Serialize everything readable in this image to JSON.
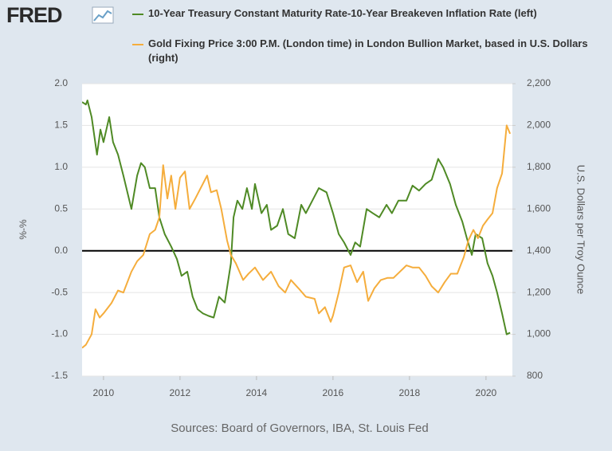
{
  "logo": "FRED",
  "chart_data": {
    "type": "line",
    "series": [
      {
        "name": "10-Year Treasury Constant Maturity Rate-10-Year Breakeven Inflation Rate (left)",
        "color": "#4f8a25",
        "axis": "y",
        "x": [
          2009.44,
          2009.54,
          2009.58,
          2009.69,
          2009.83,
          2009.92,
          2010.0,
          2010.15,
          2010.25,
          2010.38,
          2010.52,
          2010.73,
          2010.88,
          2010.98,
          2011.08,
          2011.21,
          2011.35,
          2011.46,
          2011.6,
          2011.77,
          2011.92,
          2012.04,
          2012.19,
          2012.33,
          2012.46,
          2012.6,
          2012.75,
          2012.88,
          2013.02,
          2013.17,
          2013.33,
          2013.4,
          2013.5,
          2013.63,
          2013.75,
          2013.88,
          2013.96,
          2014.13,
          2014.27,
          2014.38,
          2014.54,
          2014.69,
          2014.83,
          2015.0,
          2015.17,
          2015.29,
          2015.46,
          2015.63,
          2015.83,
          2016.0,
          2016.15,
          2016.29,
          2016.46,
          2016.58,
          2016.71,
          2016.88,
          2017.04,
          2017.21,
          2017.4,
          2017.54,
          2017.71,
          2017.92,
          2018.08,
          2018.25,
          2018.42,
          2018.58,
          2018.75,
          2018.88,
          2019.06,
          2019.21,
          2019.38,
          2019.5,
          2019.63,
          2019.73,
          2019.9,
          2020.04,
          2020.17,
          2020.29,
          2020.42,
          2020.54,
          2020.63
        ],
        "values": [
          1.78,
          1.75,
          1.8,
          1.6,
          1.15,
          1.45,
          1.3,
          1.6,
          1.3,
          1.15,
          0.9,
          0.5,
          0.9,
          1.05,
          1.0,
          0.75,
          0.75,
          0.4,
          0.2,
          0.05,
          -0.1,
          -0.3,
          -0.25,
          -0.55,
          -0.7,
          -0.75,
          -0.78,
          -0.8,
          -0.55,
          -0.62,
          -0.15,
          0.4,
          0.6,
          0.5,
          0.75,
          0.5,
          0.8,
          0.45,
          0.55,
          0.25,
          0.3,
          0.5,
          0.2,
          0.15,
          0.55,
          0.45,
          0.6,
          0.75,
          0.7,
          0.45,
          0.2,
          0.1,
          -0.05,
          0.1,
          0.05,
          0.5,
          0.45,
          0.4,
          0.55,
          0.45,
          0.6,
          0.6,
          0.78,
          0.72,
          0.8,
          0.85,
          1.1,
          1.0,
          0.8,
          0.55,
          0.35,
          0.15,
          -0.05,
          0.2,
          0.15,
          -0.15,
          -0.3,
          -0.5,
          -0.75,
          -1.0,
          -0.98
        ]
      },
      {
        "name": "Gold Fixing Price 3:00 P.M. (London time) in London Bullion Market, based in U.S. Dollars (right)",
        "color": "#f5ad3c",
        "axis": "y2",
        "x": [
          2009.44,
          2009.54,
          2009.69,
          2009.79,
          2009.9,
          2010.0,
          2010.21,
          2010.38,
          2010.52,
          2010.73,
          2010.88,
          2011.04,
          2011.21,
          2011.35,
          2011.46,
          2011.56,
          2011.67,
          2011.77,
          2011.88,
          2012.0,
          2012.13,
          2012.25,
          2012.4,
          2012.54,
          2012.71,
          2012.81,
          2012.96,
          2013.08,
          2013.23,
          2013.33,
          2013.46,
          2013.65,
          2013.79,
          2013.96,
          2014.17,
          2014.38,
          2014.58,
          2014.75,
          2014.9,
          2015.1,
          2015.29,
          2015.52,
          2015.63,
          2015.79,
          2015.94,
          2016.0,
          2016.15,
          2016.29,
          2016.46,
          2016.63,
          2016.79,
          2016.92,
          2017.08,
          2017.25,
          2017.42,
          2017.58,
          2017.75,
          2017.92,
          2018.08,
          2018.25,
          2018.42,
          2018.58,
          2018.75,
          2018.92,
          2019.08,
          2019.25,
          2019.42,
          2019.54,
          2019.67,
          2019.79,
          2019.92,
          2020.04,
          2020.17,
          2020.29,
          2020.42,
          2020.54,
          2020.63
        ],
        "values": [
          935,
          950,
          1000,
          1120,
          1080,
          1100,
          1150,
          1210,
          1200,
          1300,
          1350,
          1380,
          1480,
          1500,
          1560,
          1810,
          1650,
          1760,
          1600,
          1750,
          1780,
          1600,
          1650,
          1700,
          1760,
          1680,
          1690,
          1600,
          1450,
          1380,
          1340,
          1260,
          1290,
          1320,
          1260,
          1300,
          1230,
          1200,
          1260,
          1220,
          1180,
          1170,
          1100,
          1130,
          1060,
          1090,
          1200,
          1320,
          1330,
          1250,
          1300,
          1160,
          1220,
          1260,
          1270,
          1270,
          1300,
          1330,
          1320,
          1320,
          1280,
          1230,
          1200,
          1250,
          1290,
          1290,
          1370,
          1450,
          1500,
          1460,
          1520,
          1550,
          1580,
          1700,
          1770,
          2000,
          1960
        ]
      }
    ],
    "xlim": [
      2009.44,
      2020.69
    ],
    "xticks": [
      2010,
      2012,
      2014,
      2016,
      2018,
      2020
    ],
    "ylim": [
      -1.5,
      2.0
    ],
    "yticks": [
      {
        "value": 2.0,
        "label": "2.0"
      },
      1.5,
      {
        "value": 1.0,
        "label": "1.0"
      },
      0.5,
      {
        "value": 0.0,
        "label": "0.0"
      },
      -0.5,
      {
        "value": -1.0,
        "label": "-1.0"
      },
      -1.5
    ],
    "y2lim": [
      800,
      2200
    ],
    "y2ticks": [
      {
        "value": 2200,
        "label": "2,200"
      },
      {
        "value": 2000,
        "label": "2,000"
      },
      {
        "value": 1800,
        "label": "1,800"
      },
      {
        "value": 1600,
        "label": "1,600"
      },
      {
        "value": 1400,
        "label": "1,400"
      },
      {
        "value": 1200,
        "label": "1,200"
      },
      {
        "value": 1000,
        "label": "1,000"
      },
      800
    ],
    "ylabel": "%-%",
    "y2label": "U.S. Dollars per Troy Ounce",
    "source": "Sources: Board of Governors, IBA, St. Louis Fed",
    "grid": true,
    "zero_line": true
  }
}
